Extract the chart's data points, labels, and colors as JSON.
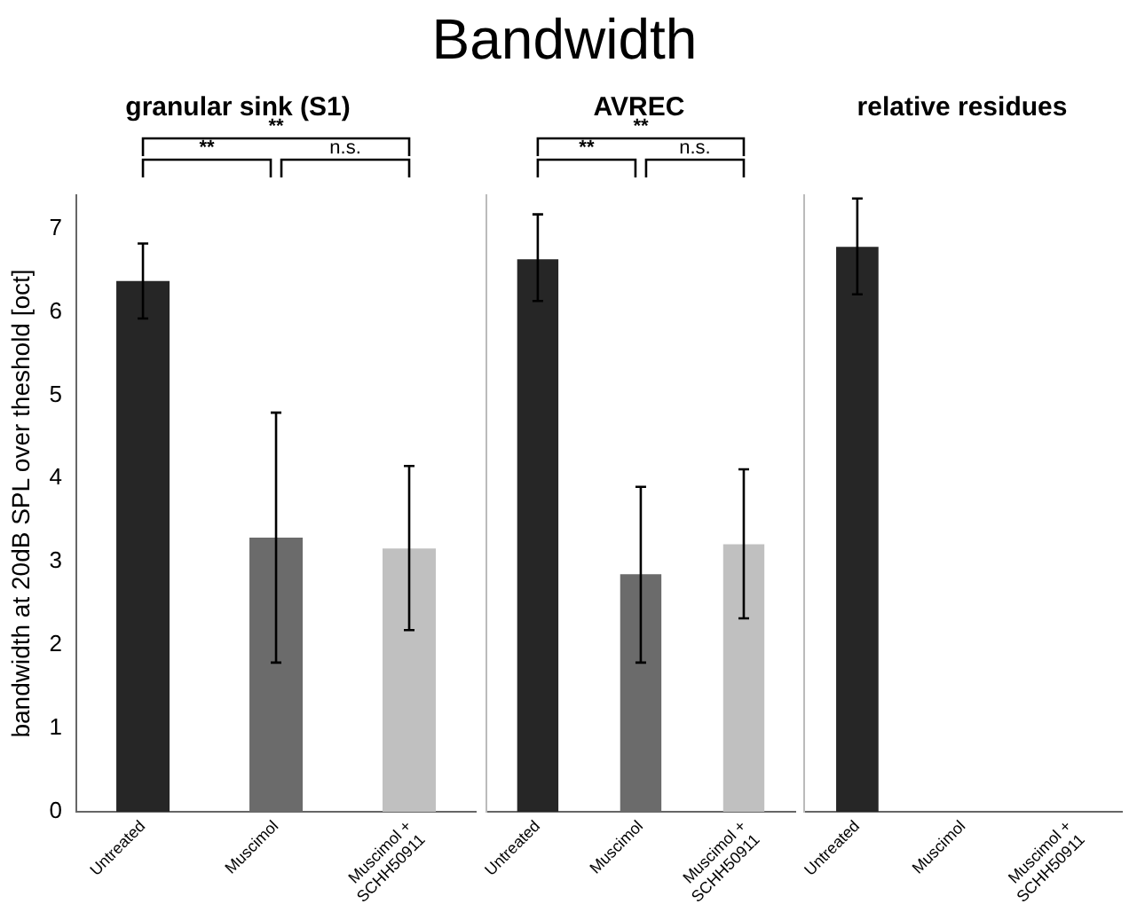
{
  "chart_data": [
    {
      "type": "bar",
      "title": "granular sink (S1)",
      "ylabel": "bandwidth at 20dB SPL over theshold [oct]",
      "categories": [
        "Untreated",
        "Muscimol",
        "Muscimol + SCHH50911"
      ],
      "values": [
        6.37,
        3.29,
        3.16
      ],
      "colors": [
        "#262626",
        "#6b6b6b",
        "#c0c0c0"
      ],
      "errors": [
        [
          5.92,
          6.82
        ],
        [
          1.79,
          4.79
        ],
        [
          2.18,
          4.15
        ]
      ],
      "ylim": [
        0,
        7.4
      ],
      "yticks": [
        0,
        1,
        2,
        3,
        4,
        5,
        6,
        7
      ],
      "grid": false,
      "legend": false,
      "annotations": [
        "**",
        "**",
        "n.s."
      ]
    },
    {
      "type": "bar",
      "title": "Bandwidth",
      "subtitle": "AVREC",
      "categories": [
        "Untreated",
        "Muscimol",
        "Muscimol + SCHH50911"
      ],
      "values": [
        6.63,
        2.85,
        3.21
      ],
      "colors": [
        "#262626",
        "#6b6b6b",
        "#c0c0c0"
      ],
      "errors": [
        [
          6.13,
          7.17
        ],
        [
          1.79,
          3.9
        ],
        [
          2.32,
          4.11
        ]
      ],
      "ylim": [
        0,
        7.4
      ],
      "yticks": [
        0,
        1,
        2,
        3,
        4,
        5,
        6,
        7
      ],
      "tick_labels": "x",
      "grid": false,
      "legend": false,
      "annotations": [
        "**",
        "**",
        "n.s."
      ]
    },
    {
      "type": "bar",
      "title": "relative residues",
      "categories": [
        "Untreated",
        "Muscimol",
        "Muscimol + SCHH50911"
      ],
      "values": [
        6.78,
        null,
        null
      ],
      "colors": [
        "#262626",
        "#6b6b6b",
        "#c0c0c0"
      ],
      "errors": [
        [
          6.21,
          7.36
        ],
        null,
        null
      ],
      "ylim": [
        0,
        7.4
      ],
      "yticks": [
        0,
        1,
        2,
        3,
        4,
        5,
        6,
        7
      ],
      "tick_labels": "x",
      "grid": false,
      "legend": false
    }
  ]
}
